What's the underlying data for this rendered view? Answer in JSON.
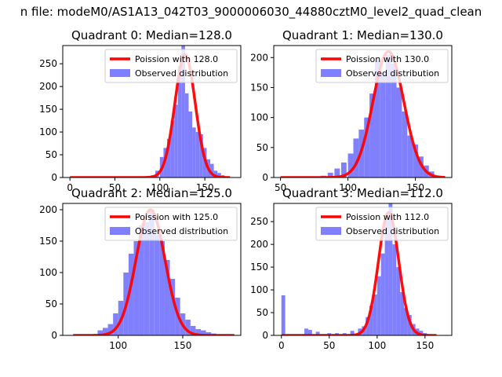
{
  "suptitle": "n file: modeM0/AS1A13_042T03_9000006030_44880cztM0_level2_quad_clean",
  "colors": {
    "poisson": "#ff0000",
    "observed": "#8080ff",
    "axis": "#000000"
  },
  "chart_data": [
    {
      "type": "bar",
      "title": "Quadrant 0: Median=128.0",
      "xlim": [
        -8,
        190
      ],
      "ylim": [
        0,
        290
      ],
      "xticks": [
        0,
        50,
        100,
        150
      ],
      "yticks": [
        0,
        50,
        100,
        150,
        200,
        250
      ],
      "legend": {
        "position": "top-right",
        "entries": [
          "Poission with 128.0",
          "Observed distribution"
        ]
      },
      "observed": {
        "name": "Observed distribution",
        "bins": [
          [
            90,
            5
          ],
          [
            95,
            15
          ],
          [
            100,
            45
          ],
          [
            104,
            65
          ],
          [
            108,
            85
          ],
          [
            112,
            125
          ],
          [
            116,
            160
          ],
          [
            120,
            245
          ],
          [
            124,
            290
          ],
          [
            128,
            185
          ],
          [
            132,
            145
          ],
          [
            136,
            110
          ],
          [
            140,
            100
          ],
          [
            144,
            95
          ],
          [
            148,
            65
          ],
          [
            152,
            40
          ],
          [
            156,
            30
          ],
          [
            160,
            15
          ],
          [
            164,
            10
          ],
          [
            168,
            5
          ]
        ],
        "bin_width": 4
      },
      "poisson": {
        "name": "Poission with 128.0",
        "mu": 128.0,
        "x_range": [
          0,
          178
        ],
        "y_peak": 270
      }
    },
    {
      "type": "bar",
      "title": "Quadrant 1: Median=130.0",
      "xlim": [
        45,
        177
      ],
      "ylim": [
        0,
        220
      ],
      "xticks": [
        50,
        100,
        150
      ],
      "yticks": [
        0,
        50,
        100,
        150,
        200
      ],
      "legend": {
        "position": "top-right",
        "entries": [
          "Poission with 130.0",
          "Observed distribution"
        ]
      },
      "observed": {
        "name": "Observed distribution",
        "bins": [
          [
            80,
            3
          ],
          [
            85,
            8
          ],
          [
            90,
            15
          ],
          [
            95,
            25
          ],
          [
            100,
            40
          ],
          [
            104,
            65
          ],
          [
            108,
            80
          ],
          [
            112,
            100
          ],
          [
            116,
            140
          ],
          [
            120,
            195
          ],
          [
            124,
            175
          ],
          [
            128,
            205
          ],
          [
            132,
            190
          ],
          [
            136,
            150
          ],
          [
            140,
            110
          ],
          [
            144,
            70
          ],
          [
            148,
            55
          ],
          [
            152,
            35
          ],
          [
            156,
            20
          ],
          [
            160,
            10
          ]
        ],
        "bin_width": 4
      },
      "poisson": {
        "name": "Poission with 130.0",
        "mu": 130.0,
        "x_range": [
          50,
          172
        ],
        "y_peak": 210
      }
    },
    {
      "type": "bar",
      "title": "Quadrant 2: Median=125.0",
      "xlim": [
        57,
        195
      ],
      "ylim": [
        0,
        210
      ],
      "xticks": [
        100,
        150
      ],
      "yticks": [
        0,
        50,
        100,
        150,
        200
      ],
      "legend": {
        "position": "top-right",
        "entries": [
          "Poission with 125.0",
          "Observed distribution"
        ]
      },
      "observed": {
        "name": "Observed distribution",
        "bins": [
          [
            84,
            8
          ],
          [
            88,
            12
          ],
          [
            92,
            18
          ],
          [
            96,
            35
          ],
          [
            100,
            55
          ],
          [
            104,
            100
          ],
          [
            108,
            130
          ],
          [
            112,
            150
          ],
          [
            116,
            175
          ],
          [
            120,
            180
          ],
          [
            124,
            200
          ],
          [
            128,
            160
          ],
          [
            132,
            150
          ],
          [
            136,
            120
          ],
          [
            140,
            90
          ],
          [
            144,
            60
          ],
          [
            148,
            35
          ],
          [
            152,
            25
          ],
          [
            156,
            15
          ],
          [
            160,
            10
          ],
          [
            164,
            8
          ],
          [
            168,
            5
          ],
          [
            172,
            3
          ]
        ],
        "bin_width": 4
      },
      "poisson": {
        "name": "Poission with 125.0",
        "mu": 125.0,
        "x_range": [
          65,
          190
        ],
        "y_peak": 200
      }
    },
    {
      "type": "bar",
      "title": "Quadrant 3: Median=112.0",
      "xlim": [
        -8,
        178
      ],
      "ylim": [
        0,
        290
      ],
      "xticks": [
        0,
        50,
        100,
        150
      ],
      "yticks": [
        0,
        50,
        100,
        150,
        200,
        250
      ],
      "legend": {
        "position": "top-right",
        "entries": [
          "Poission with 112.0",
          "Observed distribution"
        ]
      },
      "observed": {
        "name": "Observed distribution",
        "bins": [
          [
            0,
            88
          ],
          [
            24,
            15
          ],
          [
            28,
            12
          ],
          [
            36,
            8
          ],
          [
            48,
            5
          ],
          [
            56,
            5
          ],
          [
            64,
            5
          ],
          [
            72,
            10
          ],
          [
            80,
            15
          ],
          [
            84,
            20
          ],
          [
            88,
            40
          ],
          [
            92,
            65
          ],
          [
            96,
            90
          ],
          [
            100,
            130
          ],
          [
            104,
            180
          ],
          [
            108,
            260
          ],
          [
            112,
            290
          ],
          [
            116,
            200
          ],
          [
            120,
            150
          ],
          [
            124,
            95
          ],
          [
            128,
            60
          ],
          [
            132,
            45
          ],
          [
            136,
            25
          ],
          [
            140,
            15
          ],
          [
            144,
            10
          ],
          [
            148,
            5
          ]
        ],
        "bin_width": 4
      },
      "poisson": {
        "name": "Poission with 112.0",
        "mu": 112.0,
        "x_range": [
          0,
          162
        ],
        "y_peak": 270
      }
    }
  ]
}
